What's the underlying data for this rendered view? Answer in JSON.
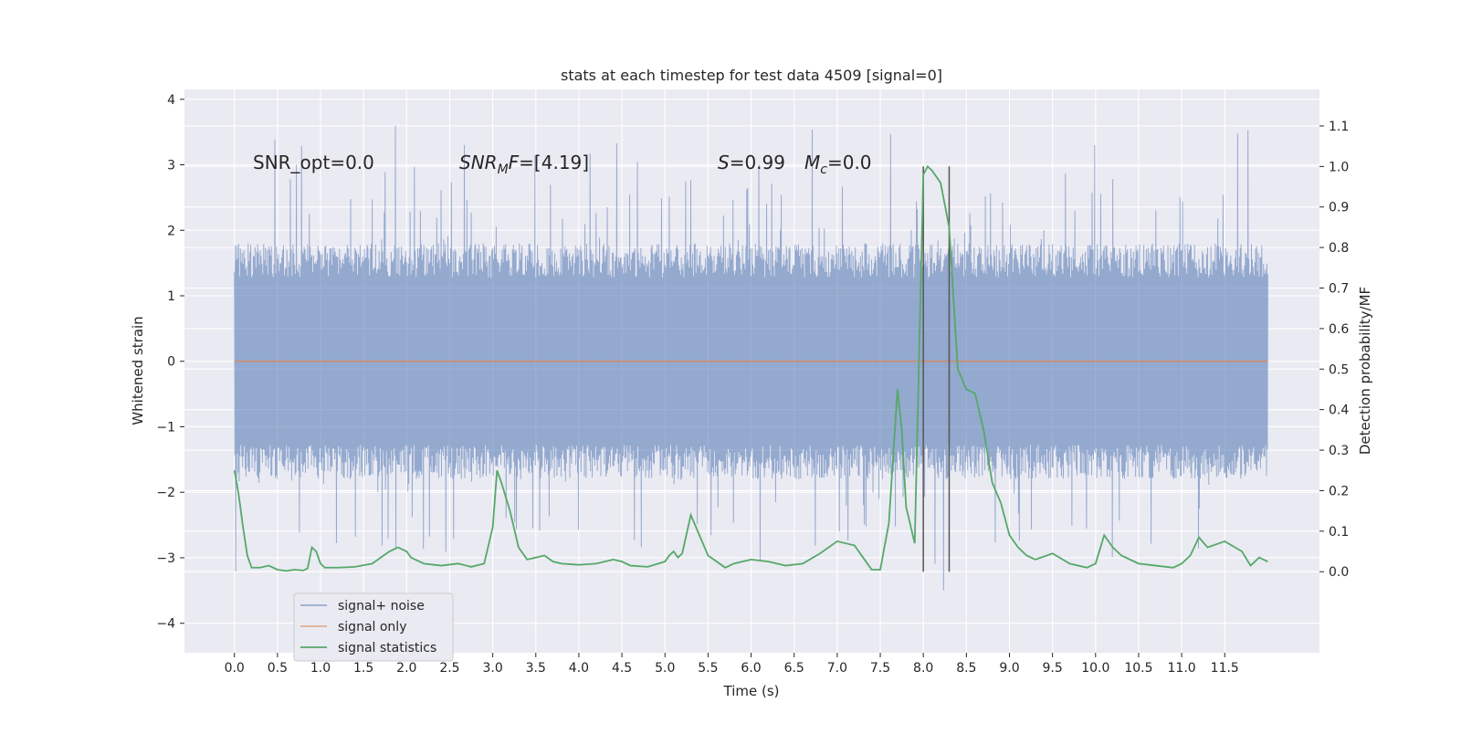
{
  "chart_data": {
    "type": "line",
    "title": "stats at each timestep for test data 4509 [signal=0]",
    "xlabel": "Time (s)",
    "ylabel_left": "Whitened strain",
    "ylabel_right": "Detection probability/MF",
    "xlim": [
      -0.58,
      12.6
    ],
    "ylim_left": [
      -4.45,
      4.15
    ],
    "ylim_right": [
      -0.2,
      1.19
    ],
    "x_ticks": [
      0.0,
      0.5,
      1.0,
      1.5,
      2.0,
      2.5,
      3.0,
      3.5,
      4.0,
      4.5,
      5.0,
      5.5,
      6.0,
      6.5,
      7.0,
      7.5,
      8.0,
      8.5,
      9.0,
      9.5,
      10.0,
      10.5,
      11.0,
      11.5
    ],
    "x_tick_labels": [
      "0.0",
      "0.5",
      "1.0",
      "1.5",
      "2.0",
      "2.5",
      "3.0",
      "3.5",
      "4.0",
      "4.5",
      "5.0",
      "5.5",
      "6.0",
      "6.5",
      "7.0",
      "7.5",
      "8.0",
      "8.5",
      "9.0",
      "9.5",
      "10.0",
      "10.5",
      "11.0",
      "11.5"
    ],
    "y_left_ticks": [
      -4,
      -3,
      -2,
      -1,
      0,
      1,
      2,
      3,
      4
    ],
    "y_left_tick_labels": [
      "−4",
      "−3",
      "−2",
      "−1",
      "0",
      "1",
      "2",
      "3",
      "4"
    ],
    "y_right_ticks": [
      0.0,
      0.1,
      0.2,
      0.3,
      0.4,
      0.5,
      0.6,
      0.7,
      0.8,
      0.9,
      1.0,
      1.1
    ],
    "y_right_tick_labels": [
      "0.0",
      "0.1",
      "0.2",
      "0.3",
      "0.4",
      "0.5",
      "0.6",
      "0.7",
      "0.8",
      "0.9",
      "1.0",
      "1.1"
    ],
    "grid": true,
    "legend_position": "lower-left",
    "noise_series": {
      "name": "signal+ noise",
      "color": "#4c72b0",
      "t_start": 0.0,
      "t_end": 12.0,
      "typical_amplitude": 1.5,
      "max_spike": 3.75,
      "min_spike": -4.1
    },
    "signal_series": {
      "name": "signal only",
      "color": "#dd8452",
      "x": [
        0.0,
        12.0
      ],
      "y": [
        0.0,
        0.0
      ]
    },
    "stat_series": {
      "name": "signal statistics",
      "color": "#55a868",
      "x": [
        0.0,
        0.05,
        0.1,
        0.15,
        0.2,
        0.3,
        0.4,
        0.5,
        0.6,
        0.7,
        0.8,
        0.85,
        0.9,
        0.95,
        1.0,
        1.05,
        1.1,
        1.2,
        1.4,
        1.6,
        1.8,
        1.9,
        2.0,
        2.05,
        2.1,
        2.2,
        2.4,
        2.6,
        2.75,
        2.9,
        3.0,
        3.05,
        3.1,
        3.2,
        3.3,
        3.4,
        3.5,
        3.6,
        3.7,
        3.8,
        4.0,
        4.2,
        4.4,
        4.5,
        4.6,
        4.8,
        5.0,
        5.05,
        5.1,
        5.15,
        5.2,
        5.3,
        5.4,
        5.5,
        5.6,
        5.7,
        5.8,
        6.0,
        6.2,
        6.4,
        6.6,
        6.8,
        7.0,
        7.2,
        7.3,
        7.4,
        7.5,
        7.6,
        7.7,
        7.75,
        7.8,
        7.9,
        8.0,
        8.05,
        8.1,
        8.2,
        8.3,
        8.4,
        8.5,
        8.6,
        8.7,
        8.8,
        8.9,
        9.0,
        9.1,
        9.2,
        9.3,
        9.5,
        9.7,
        9.9,
        10.0,
        10.1,
        10.2,
        10.3,
        10.5,
        10.7,
        10.9,
        11.0,
        11.1,
        11.2,
        11.3,
        11.5,
        11.7,
        11.8,
        11.9,
        12.0
      ],
      "y": [
        0.25,
        0.19,
        0.11,
        0.04,
        0.01,
        0.01,
        0.015,
        0.005,
        0.002,
        0.005,
        0.003,
        0.008,
        0.06,
        0.05,
        0.02,
        0.01,
        0.01,
        0.01,
        0.012,
        0.02,
        0.05,
        0.06,
        0.05,
        0.035,
        0.03,
        0.02,
        0.015,
        0.02,
        0.012,
        0.02,
        0.11,
        0.25,
        0.22,
        0.15,
        0.06,
        0.03,
        0.035,
        0.04,
        0.025,
        0.02,
        0.017,
        0.02,
        0.03,
        0.025,
        0.015,
        0.012,
        0.025,
        0.04,
        0.05,
        0.035,
        0.045,
        0.14,
        0.09,
        0.04,
        0.025,
        0.01,
        0.02,
        0.03,
        0.025,
        0.015,
        0.02,
        0.045,
        0.075,
        0.065,
        0.035,
        0.005,
        0.005,
        0.12,
        0.45,
        0.35,
        0.16,
        0.07,
        0.98,
        1.0,
        0.99,
        0.96,
        0.85,
        0.5,
        0.45,
        0.44,
        0.35,
        0.22,
        0.17,
        0.09,
        0.06,
        0.04,
        0.03,
        0.045,
        0.02,
        0.01,
        0.02,
        0.09,
        0.06,
        0.04,
        0.02,
        0.015,
        0.01,
        0.02,
        0.04,
        0.085,
        0.06,
        0.075,
        0.05,
        0.015,
        0.035,
        0.025
      ],
      "spike_lines_x": [
        8.0,
        8.3
      ],
      "spike_lines_range": [
        0.0,
        1.0
      ]
    },
    "annotations": {
      "snr_opt": "SNR_opt=0.0",
      "snr_mf_base": "SNR",
      "snr_mf_sub": "M",
      "snr_mf_rest": "F=[4.19]",
      "s_label": "S",
      "s_value": "=0.99",
      "mc_base": "M",
      "mc_sub": "c",
      "mc_value": "=0.0"
    },
    "legend": [
      {
        "label": "signal+ noise",
        "color": "#4c72b0"
      },
      {
        "label": "signal only",
        "color": "#dd8452"
      },
      {
        "label": "signal statistics",
        "color": "#55a868"
      }
    ],
    "colors": {
      "background": "#eaeaf2",
      "grid": "#ffffff",
      "spike_line": "#555555"
    }
  }
}
